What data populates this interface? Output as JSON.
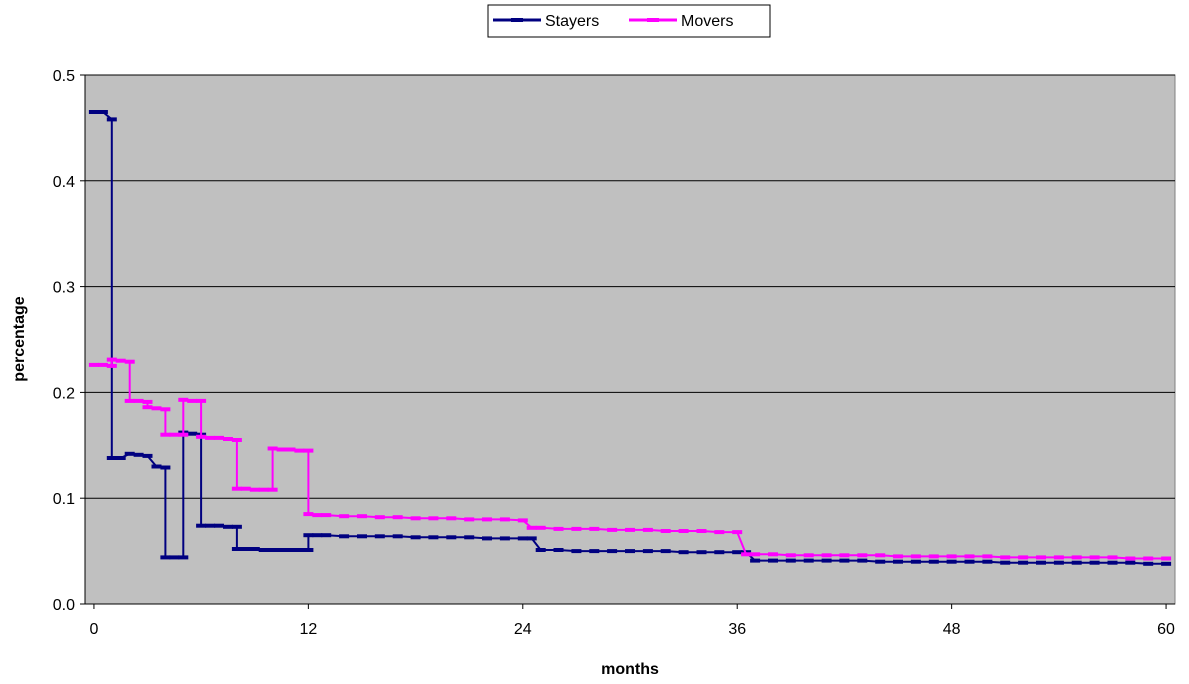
{
  "chart_data": {
    "type": "line",
    "title": "",
    "xlabel": "months",
    "ylabel": "percentage",
    "xlim": [
      -0.5,
      60.5
    ],
    "ylim": [
      0,
      0.5
    ],
    "x_ticks": [
      0,
      12,
      24,
      36,
      48,
      60
    ],
    "x_tick_labels": [
      "0",
      "12",
      "24",
      "36",
      "48",
      "60"
    ],
    "y_ticks": [
      0,
      0.1,
      0.2,
      0.3,
      0.4,
      0.5
    ],
    "y_tick_labels": [
      "0.0",
      "0.1",
      "0.2",
      "0.3",
      "0.4",
      "0.5"
    ],
    "grid": "horizontal",
    "plot_background": "#c0c0c0",
    "legend_position": "top-center",
    "series": [
      {
        "name": "Stayers",
        "color": "#000080",
        "marker": "dash",
        "x": [
          0,
          0.5,
          1,
          1,
          1.5,
          2,
          2.5,
          3,
          3.5,
          4,
          4,
          4.5,
          5,
          5,
          5.5,
          6,
          6,
          6.5,
          7,
          7.5,
          8,
          8,
          8.5,
          9,
          9.5,
          10,
          10.5,
          11,
          11.5,
          12,
          12,
          12.5,
          13,
          14,
          15,
          16,
          17,
          18,
          19,
          20,
          21,
          22,
          23,
          24,
          24.5,
          25,
          26,
          27,
          28,
          29,
          30,
          31,
          32,
          33,
          34,
          35,
          36,
          36.5,
          37,
          38,
          39,
          40,
          41,
          42,
          43,
          44,
          45,
          46,
          47,
          48,
          49,
          50,
          51,
          52,
          53,
          54,
          55,
          56,
          57,
          58,
          59,
          60
        ],
        "y": [
          0.465,
          0.465,
          0.458,
          0.138,
          0.138,
          0.142,
          0.141,
          0.14,
          0.13,
          0.129,
          0.044,
          0.044,
          0.044,
          0.162,
          0.161,
          0.16,
          0.074,
          0.074,
          0.074,
          0.073,
          0.073,
          0.052,
          0.052,
          0.052,
          0.051,
          0.051,
          0.051,
          0.051,
          0.051,
          0.051,
          0.065,
          0.065,
          0.065,
          0.064,
          0.064,
          0.064,
          0.064,
          0.063,
          0.063,
          0.063,
          0.063,
          0.062,
          0.062,
          0.062,
          0.062,
          0.051,
          0.051,
          0.05,
          0.05,
          0.05,
          0.05,
          0.05,
          0.05,
          0.049,
          0.049,
          0.049,
          0.049,
          0.049,
          0.041,
          0.041,
          0.041,
          0.041,
          0.041,
          0.041,
          0.041,
          0.04,
          0.04,
          0.04,
          0.04,
          0.04,
          0.04,
          0.04,
          0.039,
          0.039,
          0.039,
          0.039,
          0.039,
          0.039,
          0.039,
          0.039,
          0.038,
          0.038
        ]
      },
      {
        "name": "Movers",
        "color": "#ff00ff",
        "marker": "dash",
        "x": [
          0,
          0.5,
          1,
          1,
          1.5,
          2,
          2,
          2.5,
          3,
          3,
          3.5,
          4,
          4,
          4.5,
          5,
          5,
          5.5,
          6,
          6,
          6.5,
          7,
          7.5,
          8,
          8,
          8.5,
          9,
          9.5,
          10,
          10,
          10.5,
          11,
          11.5,
          12,
          12,
          12.5,
          13,
          14,
          15,
          16,
          17,
          18,
          19,
          20,
          21,
          22,
          23,
          24,
          24.5,
          25,
          26,
          27,
          28,
          29,
          30,
          31,
          32,
          33,
          34,
          35,
          36,
          36.5,
          37,
          38,
          39,
          40,
          41,
          42,
          43,
          44,
          45,
          46,
          47,
          48,
          49,
          50,
          51,
          52,
          53,
          54,
          55,
          56,
          57,
          58,
          59,
          60
        ],
        "y": [
          0.226,
          0.226,
          0.225,
          0.231,
          0.23,
          0.229,
          0.192,
          0.192,
          0.191,
          0.186,
          0.185,
          0.184,
          0.16,
          0.16,
          0.16,
          0.193,
          0.192,
          0.192,
          0.158,
          0.157,
          0.157,
          0.156,
          0.155,
          0.109,
          0.109,
          0.108,
          0.108,
          0.108,
          0.147,
          0.146,
          0.146,
          0.145,
          0.145,
          0.085,
          0.084,
          0.084,
          0.083,
          0.083,
          0.082,
          0.082,
          0.081,
          0.081,
          0.081,
          0.08,
          0.08,
          0.08,
          0.079,
          0.072,
          0.072,
          0.071,
          0.071,
          0.071,
          0.07,
          0.07,
          0.07,
          0.069,
          0.069,
          0.069,
          0.068,
          0.068,
          0.047,
          0.047,
          0.047,
          0.046,
          0.046,
          0.046,
          0.046,
          0.046,
          0.046,
          0.045,
          0.045,
          0.045,
          0.045,
          0.045,
          0.045,
          0.044,
          0.044,
          0.044,
          0.044,
          0.044,
          0.044,
          0.044,
          0.043,
          0.043,
          0.043
        ]
      }
    ]
  }
}
